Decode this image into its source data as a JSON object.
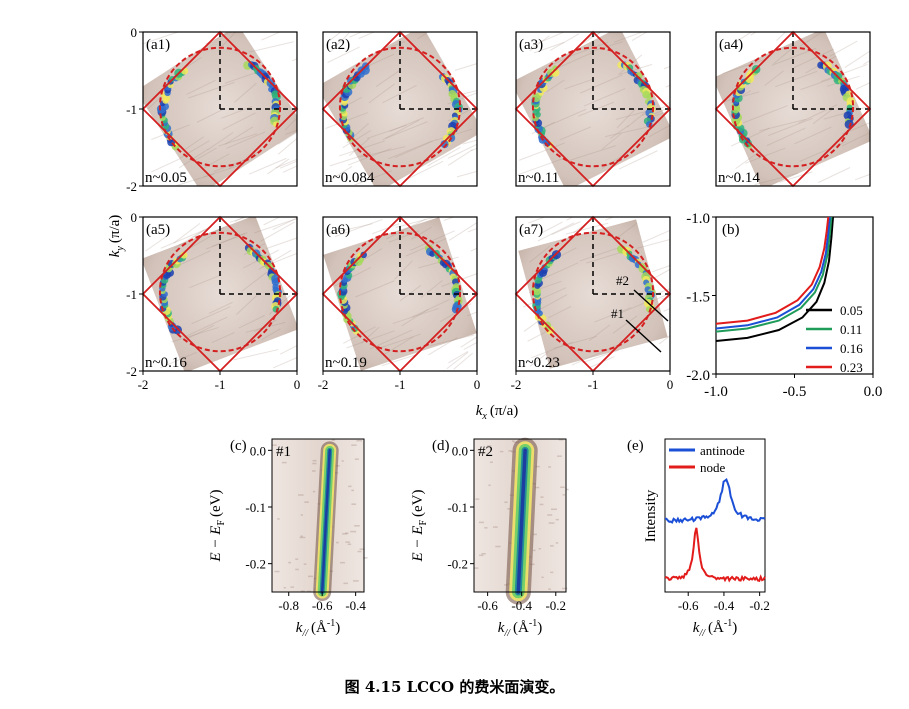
{
  "figure": {
    "caption": "图 4.15 LCCO 的费米面演变。",
    "axis_labels": {
      "ky": "k",
      "ky_sub": "y",
      "ky_unit": "(π/a)",
      "kx": "k",
      "kx_sub": "x",
      "kx_unit": "(π/a)",
      "energy_E": "E − E",
      "energy_sub": "F",
      "energy_unit": "(eV)",
      "kpar": "k",
      "kpar_sub": "//",
      "kpar_unit": "(Å",
      "kpar_exp": "-1",
      "kpar_close": ")",
      "intensity": "Intensity"
    },
    "cut_labels": [
      "#1",
      "#2"
    ],
    "colors": {
      "bz": "#d42020",
      "fermi_fit": "#d42020",
      "guide": "#000000",
      "map_background": "#c8b5ac"
    }
  },
  "chart_data": [
    {
      "type": "heatmap",
      "id": "fs-maps",
      "xlim": [
        -2,
        0
      ],
      "ylim": [
        -2,
        0
      ],
      "xticks": [
        "-2",
        "-1",
        "0"
      ],
      "yticks": [
        "0",
        "-1",
        "-2"
      ],
      "panels": [
        {
          "label": "(a1)",
          "doping": "n~0.05"
        },
        {
          "label": "(a2)",
          "doping": "n~0.084"
        },
        {
          "label": "(a3)",
          "doping": "n~0.11"
        },
        {
          "label": "(a4)",
          "doping": "n~0.14"
        },
        {
          "label": "(a5)",
          "doping": "n~0.16"
        },
        {
          "label": "(a6)",
          "doping": "n~0.19"
        },
        {
          "label": "(a7)",
          "doping": "n~0.23"
        }
      ]
    },
    {
      "type": "line",
      "id": "b",
      "label": "(b)",
      "xlim": [
        -1.0,
        0.0
      ],
      "ylim": [
        -2.0,
        -1.0
      ],
      "xticks": [
        "-1.0",
        "-0.5",
        "0.0"
      ],
      "yticks": [
        "-1.0",
        "-1.5",
        "-2.0"
      ],
      "legend_position": "bottom-right",
      "series": [
        {
          "name": "0.05",
          "color": "#000000",
          "x": [
            -1.0,
            -0.8,
            -0.6,
            -0.45,
            -0.36,
            -0.31,
            -0.28,
            -0.265,
            -0.255
          ],
          "y": [
            -1.79,
            -1.77,
            -1.72,
            -1.64,
            -1.54,
            -1.42,
            -1.28,
            -1.13,
            -1.0
          ]
        },
        {
          "name": "0.11",
          "color": "#1f9b5a",
          "x": [
            -1.0,
            -0.8,
            -0.6,
            -0.46,
            -0.37,
            -0.32,
            -0.29,
            -0.275,
            -0.265
          ],
          "y": [
            -1.73,
            -1.71,
            -1.66,
            -1.58,
            -1.48,
            -1.37,
            -1.24,
            -1.11,
            -1.0
          ]
        },
        {
          "name": "0.16",
          "color": "#1a4fd6",
          "x": [
            -1.0,
            -0.8,
            -0.61,
            -0.47,
            -0.38,
            -0.33,
            -0.3,
            -0.285,
            -0.275
          ],
          "y": [
            -1.71,
            -1.69,
            -1.64,
            -1.56,
            -1.46,
            -1.35,
            -1.23,
            -1.1,
            -1.0
          ]
        },
        {
          "name": "0.23",
          "color": "#e21b1b",
          "x": [
            -1.0,
            -0.8,
            -0.62,
            -0.48,
            -0.39,
            -0.34,
            -0.31,
            -0.295,
            -0.285
          ],
          "y": [
            -1.68,
            -1.66,
            -1.61,
            -1.53,
            -1.43,
            -1.32,
            -1.2,
            -1.09,
            -1.0
          ]
        }
      ]
    },
    {
      "type": "heatmap",
      "id": "c",
      "label": "(c)",
      "cut": "#1",
      "xlim": [
        -0.9,
        -0.35
      ],
      "ylim": [
        -0.25,
        0.02
      ],
      "xticks": [
        "-0.8",
        "-0.6",
        "-0.4"
      ],
      "yticks": [
        "0.0",
        "-0.1",
        "-0.2"
      ],
      "dispersion": {
        "k": [
          -0.555,
          -0.6
        ],
        "E": [
          0.0,
          -0.25
        ]
      }
    },
    {
      "type": "heatmap",
      "id": "d",
      "label": "(d)",
      "cut": "#2",
      "xlim": [
        -0.68,
        -0.14
      ],
      "ylim": [
        -0.25,
        0.02
      ],
      "xticks": [
        "-0.6",
        "-0.4",
        "-0.2"
      ],
      "yticks": [
        "0.0",
        "-0.1",
        "-0.2"
      ],
      "dispersion": {
        "k": [
          -0.38,
          -0.42
        ],
        "E": [
          0.0,
          -0.25
        ]
      }
    },
    {
      "type": "line",
      "id": "e",
      "label": "(e)",
      "xlim": [
        -0.73,
        -0.17
      ],
      "xticks": [
        "-0.6",
        "-0.4",
        "-0.2"
      ],
      "legend_position": "top-left",
      "series": [
        {
          "name": "antinode",
          "color": "#1a4fd6",
          "peak_k": -0.39
        },
        {
          "name": "node",
          "color": "#e21b1b",
          "peak_k": -0.555
        }
      ]
    }
  ]
}
